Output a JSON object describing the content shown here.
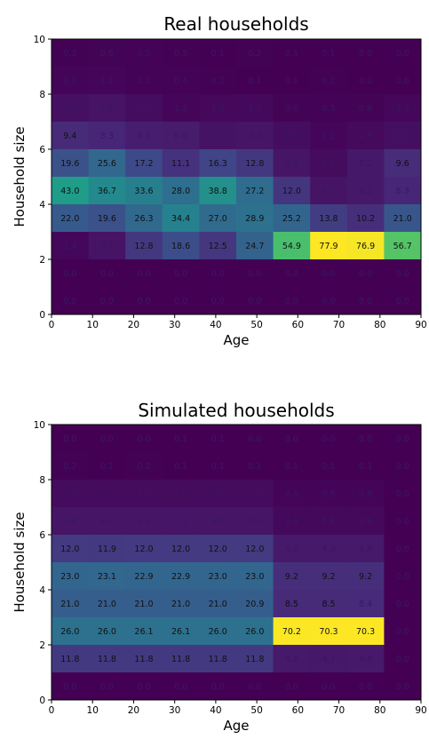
{
  "chart_data": [
    {
      "type": "heatmap",
      "title": "Real households",
      "xlabel": "Age",
      "ylabel": "Household size",
      "xlim": [
        0,
        90
      ],
      "ylim": [
        0,
        10
      ],
      "x_ticks": [
        "0",
        "10",
        "20",
        "30",
        "40",
        "50",
        "60",
        "70",
        "80",
        "90"
      ],
      "y_ticks": [
        "0",
        "2",
        "4",
        "6",
        "8",
        "10"
      ],
      "colormap": [
        "#440154",
        "#482878",
        "#3e4989",
        "#31688e",
        "#26828e",
        "#1f9e89",
        "#35b779",
        "#6ece58",
        "#b5de2b",
        "#fde725"
      ],
      "rows_top_to_bottom": [
        [
          "0.3",
          "0.6",
          "0.5",
          "0.3",
          "0.1",
          "0.2",
          "0.1",
          "0.1",
          "0.0",
          "0.0"
        ],
        [
          "0.9",
          "1.1",
          "0.5",
          "0.4",
          "0.2",
          "0.1",
          "0.1",
          "0.2",
          "0.0",
          "0.0"
        ],
        [
          "3.4",
          "4.0",
          "2.6",
          "1.2",
          "1.5",
          "1.7",
          "0.6",
          "0.5",
          "0.6",
          "1.3"
        ],
        [
          "9.4",
          "8.3",
          "6.5",
          "6.0",
          "3.7",
          "4.4",
          "2.6",
          "1.2",
          "1.9",
          "3.2"
        ],
        [
          "19.6",
          "25.6",
          "17.2",
          "11.1",
          "16.3",
          "12.8",
          "4.4",
          "2.2",
          "5.2",
          "9.6"
        ],
        [
          "43.0",
          "36.7",
          "33.6",
          "28.0",
          "38.8",
          "27.2",
          "12.0",
          "4.2",
          "5.2",
          "8.3"
        ],
        [
          "22.0",
          "19.6",
          "26.3",
          "34.4",
          "27.0",
          "28.9",
          "25.2",
          "13.8",
          "10.2",
          "21.0"
        ],
        [
          "1.4",
          "4.1",
          "12.8",
          "18.6",
          "12.5",
          "24.7",
          "54.9",
          "77.9",
          "76.9",
          "56.7"
        ],
        [
          "0.0",
          "0.0",
          "0.0",
          "0.0",
          "0.0",
          "0.0",
          "0.0",
          "0.0",
          "0.0",
          "0.0"
        ],
        [
          "0.0",
          "0.0",
          "0.0",
          "0.0",
          "0.0",
          "0.0",
          "0.0",
          "0.0",
          "0.0",
          "0.0"
        ]
      ]
    },
    {
      "type": "heatmap",
      "title": "Simulated households",
      "xlabel": "Age",
      "ylabel": "Household size",
      "xlim": [
        0,
        90
      ],
      "ylim": [
        0,
        10
      ],
      "x_ticks": [
        "0",
        "10",
        "20",
        "30",
        "40",
        "50",
        "60",
        "70",
        "80",
        "90"
      ],
      "y_ticks": [
        "0",
        "2",
        "4",
        "6",
        "8",
        "10"
      ],
      "colormap": [
        "#440154",
        "#482878",
        "#3e4989",
        "#31688e",
        "#26828e",
        "#1f9e89",
        "#35b779",
        "#6ece58",
        "#b5de2b",
        "#fde725"
      ],
      "rows_top_to_bottom": [
        [
          "0.0",
          "0.0",
          "0.0",
          "0.1",
          "0.1",
          "0.0",
          "0.0",
          "0.0",
          "0.0",
          "0.0"
        ],
        [
          "0.2",
          "0.1",
          "0.2",
          "0.1",
          "0.1",
          "0.1",
          "0.1",
          "0.1",
          "0.1",
          "0.0"
        ],
        [
          "2.0",
          "2.0",
          "2.0",
          "2.0",
          "2.0",
          "2.0",
          "0.8",
          "0.8",
          "0.8",
          "0.0"
        ],
        [
          "4.0",
          "4.0",
          "4.0",
          "4.1",
          "4.0",
          "4.0",
          "1.6",
          "1.6",
          "1.6",
          "0.0"
        ],
        [
          "12.0",
          "11.9",
          "12.0",
          "12.0",
          "12.0",
          "12.0",
          "4.8",
          "4.9",
          "4.8",
          "0.0"
        ],
        [
          "23.0",
          "23.1",
          "22.9",
          "22.9",
          "23.0",
          "23.0",
          "9.2",
          "9.2",
          "9.2",
          "0.0"
        ],
        [
          "21.0",
          "21.0",
          "21.0",
          "21.0",
          "21.0",
          "20.9",
          "8.5",
          "8.5",
          "8.4",
          "0.0"
        ],
        [
          "26.0",
          "26.0",
          "26.1",
          "26.1",
          "26.0",
          "26.0",
          "70.2",
          "70.3",
          "70.3",
          "0.0"
        ],
        [
          "11.8",
          "11.8",
          "11.8",
          "11.8",
          "11.8",
          "11.8",
          "4.8",
          "4.7",
          "4.9",
          "0.0"
        ],
        [
          "0.0",
          "0.0",
          "0.0",
          "0.0",
          "0.0",
          "0.0",
          "0.0",
          "0.0",
          "0.0",
          "0.0"
        ]
      ]
    }
  ]
}
